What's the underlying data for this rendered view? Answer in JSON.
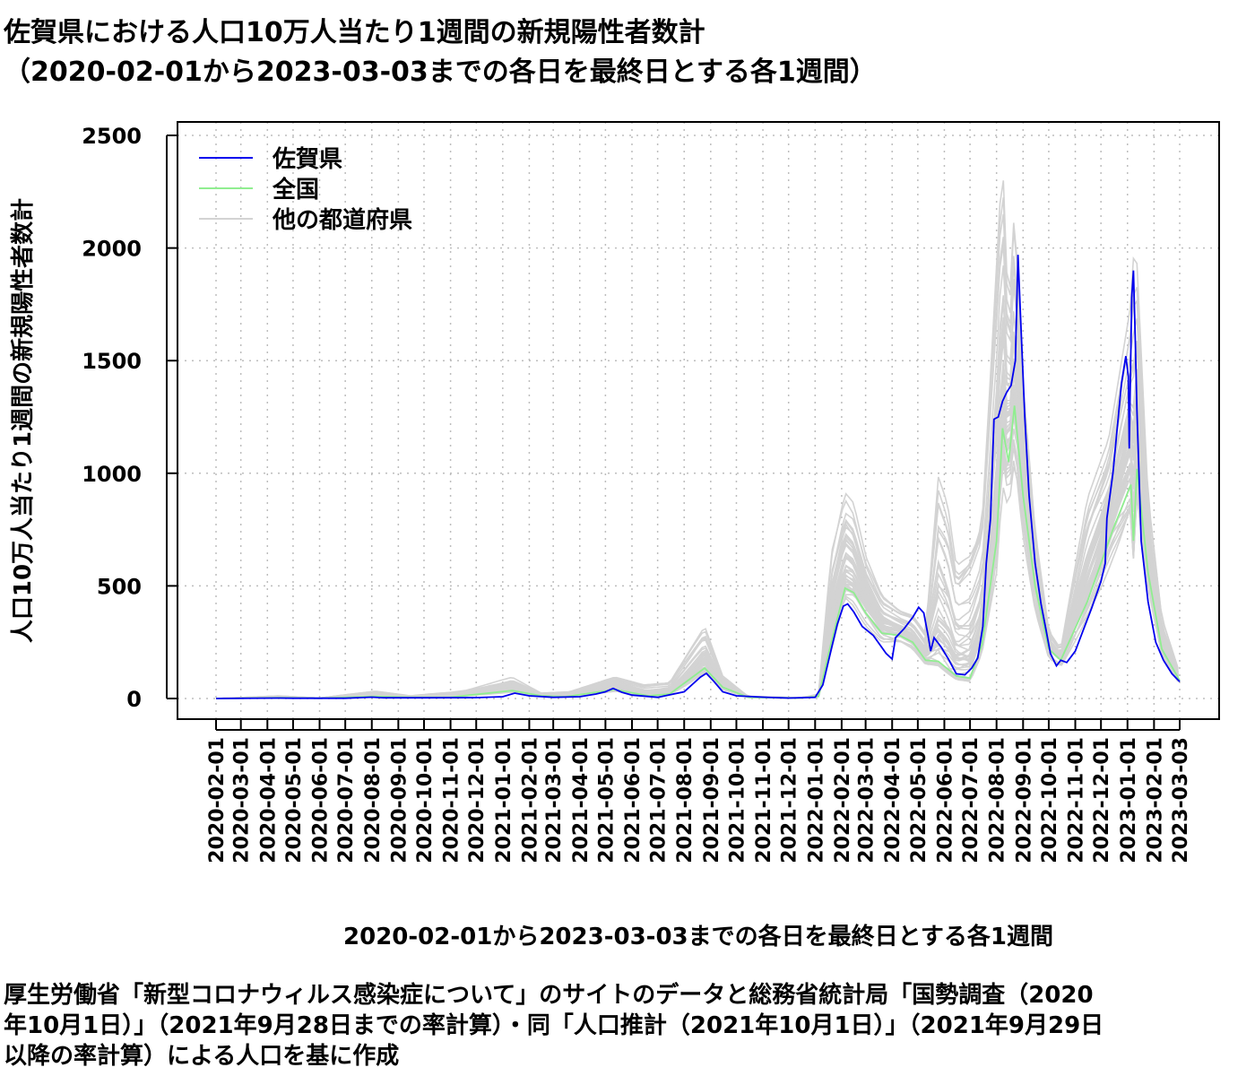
{
  "chart_data": {
    "type": "line",
    "title": "佐賀県における人口10万人当たり1週間の新規陽性者数計",
    "subtitle": "（2020-02-01から2023-03-03までの各日を最終日とする各1週間）",
    "xlabel": "2020-02-01から2023-03-03までの各日を最終日とする各1週間",
    "ylabel": "人口10万人当たり1週間の新規陽性者数計",
    "ylim": [
      0,
      2500
    ],
    "yticks": [
      "0",
      "500",
      "1000",
      "1500",
      "2000",
      "2500"
    ],
    "xlim": [
      "2020-02-01",
      "2023-03-03"
    ],
    "xticks": [
      "2020-02-01",
      "2020-03-01",
      "2020-04-01",
      "2020-05-01",
      "2020-06-01",
      "2020-07-01",
      "2020-08-01",
      "2020-09-01",
      "2020-10-01",
      "2020-11-01",
      "2020-12-01",
      "2021-01-01",
      "2021-02-01",
      "2021-03-01",
      "2021-04-01",
      "2021-05-01",
      "2021-06-01",
      "2021-07-01",
      "2021-08-01",
      "2021-09-01",
      "2021-10-01",
      "2021-11-01",
      "2021-12-01",
      "2022-01-01",
      "2022-02-01",
      "2022-03-01",
      "2022-04-01",
      "2022-05-01",
      "2022-06-01",
      "2022-07-01",
      "2022-08-01",
      "2022-09-01",
      "2022-10-01",
      "2022-11-01",
      "2022-12-01",
      "2023-01-01",
      "2023-02-01",
      "2023-03-03"
    ],
    "grid": true,
    "legend_position": "top-left",
    "legend": [
      "佐賀県",
      "全国",
      "他の都道府県"
    ],
    "colors": {
      "saga": "#0000ee",
      "national": "#90ee90",
      "others": "#d3d3d3"
    },
    "series": [
      {
        "name": "佐賀県",
        "points": [
          [
            "2020-02-01",
            0
          ],
          [
            "2020-04-15",
            2
          ],
          [
            "2020-05-01",
            1
          ],
          [
            "2020-07-01",
            1
          ],
          [
            "2020-08-01",
            6
          ],
          [
            "2020-08-15",
            3
          ],
          [
            "2020-10-01",
            3
          ],
          [
            "2020-12-01",
            4
          ],
          [
            "2021-01-01",
            8
          ],
          [
            "2021-01-15",
            24
          ],
          [
            "2021-02-01",
            12
          ],
          [
            "2021-03-01",
            5
          ],
          [
            "2021-04-01",
            8
          ],
          [
            "2021-04-20",
            20
          ],
          [
            "2021-05-01",
            30
          ],
          [
            "2021-05-10",
            45
          ],
          [
            "2021-05-20",
            28
          ],
          [
            "2021-06-01",
            15
          ],
          [
            "2021-07-01",
            5
          ],
          [
            "2021-08-01",
            30
          ],
          [
            "2021-08-20",
            95
          ],
          [
            "2021-08-27",
            112
          ],
          [
            "2021-09-05",
            75
          ],
          [
            "2021-09-15",
            30
          ],
          [
            "2021-10-01",
            12
          ],
          [
            "2021-11-01",
            6
          ],
          [
            "2021-12-01",
            2
          ],
          [
            "2022-01-01",
            5
          ],
          [
            "2022-01-10",
            60
          ],
          [
            "2022-01-20",
            220
          ],
          [
            "2022-01-27",
            330
          ],
          [
            "2022-02-03",
            410
          ],
          [
            "2022-02-08",
            420
          ],
          [
            "2022-02-15",
            385
          ],
          [
            "2022-02-25",
            320
          ],
          [
            "2022-03-10",
            280
          ],
          [
            "2022-03-25",
            200
          ],
          [
            "2022-04-01",
            175
          ],
          [
            "2022-04-05",
            270
          ],
          [
            "2022-04-15",
            310
          ],
          [
            "2022-04-25",
            360
          ],
          [
            "2022-05-02",
            405
          ],
          [
            "2022-05-08",
            380
          ],
          [
            "2022-05-13",
            280
          ],
          [
            "2022-05-16",
            210
          ],
          [
            "2022-05-20",
            270
          ],
          [
            "2022-05-28",
            230
          ],
          [
            "2022-06-05",
            180
          ],
          [
            "2022-06-15",
            110
          ],
          [
            "2022-06-25",
            105
          ],
          [
            "2022-07-03",
            135
          ],
          [
            "2022-07-10",
            180
          ],
          [
            "2022-07-16",
            320
          ],
          [
            "2022-07-20",
            600
          ],
          [
            "2022-07-25",
            800
          ],
          [
            "2022-07-29",
            1240
          ],
          [
            "2022-08-03",
            1250
          ],
          [
            "2022-08-08",
            1320
          ],
          [
            "2022-08-13",
            1360
          ],
          [
            "2022-08-18",
            1390
          ],
          [
            "2022-08-23",
            1500
          ],
          [
            "2022-08-26",
            1970
          ],
          [
            "2022-08-29",
            1700
          ],
          [
            "2022-09-03",
            1250
          ],
          [
            "2022-09-08",
            900
          ],
          [
            "2022-09-15",
            600
          ],
          [
            "2022-09-22",
            420
          ],
          [
            "2022-09-28",
            300
          ],
          [
            "2022-10-03",
            200
          ],
          [
            "2022-10-10",
            145
          ],
          [
            "2022-10-15",
            170
          ],
          [
            "2022-10-22",
            160
          ],
          [
            "2022-11-01",
            210
          ],
          [
            "2022-11-10",
            300
          ],
          [
            "2022-11-20",
            400
          ],
          [
            "2022-12-01",
            520
          ],
          [
            "2022-12-06",
            600
          ],
          [
            "2022-12-08",
            800
          ],
          [
            "2022-12-15",
            1000
          ],
          [
            "2022-12-20",
            1200
          ],
          [
            "2022-12-25",
            1400
          ],
          [
            "2022-12-30",
            1520
          ],
          [
            "2023-01-02",
            1430
          ],
          [
            "2023-01-03",
            1110
          ],
          [
            "2023-01-06",
            1780
          ],
          [
            "2023-01-08",
            1900
          ],
          [
            "2023-01-10",
            1600
          ],
          [
            "2023-01-12",
            1280
          ],
          [
            "2023-01-17",
            700
          ],
          [
            "2023-01-25",
            430
          ],
          [
            "2023-02-03",
            250
          ],
          [
            "2023-02-12",
            170
          ],
          [
            "2023-02-22",
            110
          ],
          [
            "2023-03-03",
            75
          ]
        ]
      },
      {
        "name": "全国",
        "points": [
          [
            "2020-02-01",
            0
          ],
          [
            "2020-04-15",
            3
          ],
          [
            "2020-06-01",
            1
          ],
          [
            "2020-08-05",
            9
          ],
          [
            "2020-09-15",
            5
          ],
          [
            "2020-11-01",
            6
          ],
          [
            "2021-01-12",
            35
          ],
          [
            "2021-02-15",
            12
          ],
          [
            "2021-03-15",
            8
          ],
          [
            "2021-05-12",
            40
          ],
          [
            "2021-06-20",
            12
          ],
          [
            "2021-07-15",
            20
          ],
          [
            "2021-08-25",
            135
          ],
          [
            "2021-09-15",
            50
          ],
          [
            "2021-10-15",
            5
          ],
          [
            "2021-12-15",
            2
          ],
          [
            "2022-01-05",
            10
          ],
          [
            "2022-01-20",
            250
          ],
          [
            "2022-02-05",
            490
          ],
          [
            "2022-02-15",
            470
          ],
          [
            "2022-03-01",
            380
          ],
          [
            "2022-03-20",
            290
          ],
          [
            "2022-04-10",
            280
          ],
          [
            "2022-04-25",
            250
          ],
          [
            "2022-05-10",
            170
          ],
          [
            "2022-05-25",
            165
          ],
          [
            "2022-06-15",
            100
          ],
          [
            "2022-07-01",
            90
          ],
          [
            "2022-07-15",
            240
          ],
          [
            "2022-08-01",
            700
          ],
          [
            "2022-08-08",
            1200
          ],
          [
            "2022-08-15",
            1050
          ],
          [
            "2022-08-22",
            1300
          ],
          [
            "2022-09-01",
            900
          ],
          [
            "2022-09-15",
            500
          ],
          [
            "2022-10-01",
            220
          ],
          [
            "2022-10-15",
            170
          ],
          [
            "2022-11-15",
            430
          ],
          [
            "2022-12-15",
            750
          ],
          [
            "2023-01-05",
            950
          ],
          [
            "2023-01-08",
            700
          ],
          [
            "2023-01-12",
            1020
          ],
          [
            "2023-01-25",
            560
          ],
          [
            "2023-02-10",
            220
          ],
          [
            "2023-03-03",
            80
          ]
        ]
      },
      {
        "name": "他の都道府県",
        "points": [
          [
            "2020-02-01",
            0
          ],
          [
            "2020-04-15",
            12
          ],
          [
            "2020-06-01",
            2
          ],
          [
            "2020-08-05",
            35
          ],
          [
            "2020-09-15",
            12
          ],
          [
            "2020-11-20",
            40
          ],
          [
            "2021-01-12",
            95
          ],
          [
            "2021-02-15",
            25
          ],
          [
            "2021-03-20",
            30
          ],
          [
            "2021-05-12",
            95
          ],
          [
            "2021-06-15",
            60
          ],
          [
            "2021-07-15",
            70
          ],
          [
            "2021-08-25",
            320
          ],
          [
            "2021-09-15",
            100
          ],
          [
            "2021-10-15",
            10
          ],
          [
            "2021-12-15",
            4
          ],
          [
            "2022-01-05",
            20
          ],
          [
            "2022-01-20",
            700
          ],
          [
            "2022-02-05",
            960
          ],
          [
            "2022-02-15",
            900
          ],
          [
            "2022-03-01",
            650
          ],
          [
            "2022-03-20",
            470
          ],
          [
            "2022-04-10",
            400
          ],
          [
            "2022-04-25",
            380
          ],
          [
            "2022-05-10",
            300
          ],
          [
            "2022-05-25",
            1030
          ],
          [
            "2022-06-05",
            900
          ],
          [
            "2022-06-15",
            620
          ],
          [
            "2022-07-01",
            700
          ],
          [
            "2022-07-15",
            850
          ],
          [
            "2022-08-01",
            2000
          ],
          [
            "2022-08-08",
            2450
          ],
          [
            "2022-08-15",
            1700
          ],
          [
            "2022-08-22",
            2200
          ],
          [
            "2022-09-01",
            1400
          ],
          [
            "2022-09-15",
            750
          ],
          [
            "2022-10-01",
            300
          ],
          [
            "2022-10-15",
            220
          ],
          [
            "2022-11-15",
            900
          ],
          [
            "2022-12-10",
            1150
          ],
          [
            "2023-01-05",
            1750
          ],
          [
            "2023-01-10",
            2090
          ],
          [
            "2023-01-25",
            900
          ],
          [
            "2023-02-10",
            360
          ],
          [
            "2023-03-03",
            110
          ]
        ]
      }
    ]
  },
  "source_note": {
    "lines": [
      "厚生労働省「新型コロナウィルス感染症について」のサイトのデータと総務省統計局「国勢調査（2020",
      "年10月1日）」（2021年9月28日までの率計算）・同「人口推計（2021年10月1日）」（2021年9月29日",
      "以降の率計算）による人口を基に作成"
    ]
  }
}
